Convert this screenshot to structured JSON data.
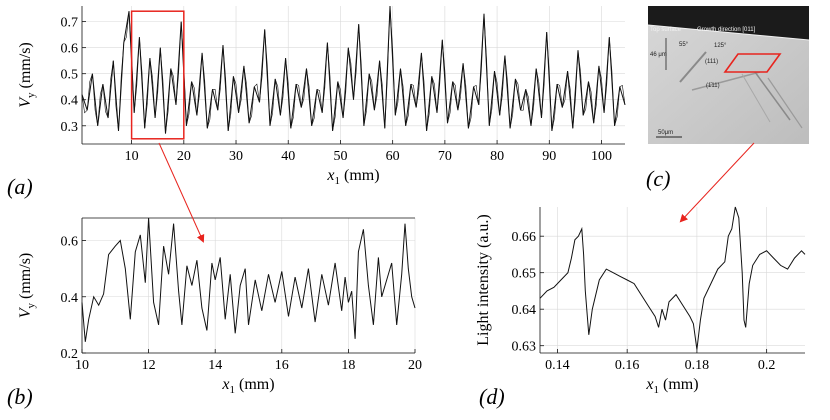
{
  "panels": {
    "a": "(a)",
    "b": "(b)",
    "c": "(c)",
    "d": "(d)"
  },
  "colors": {
    "line": "#111111",
    "highlight": "#e8241e",
    "grid": "#d9d9d9"
  },
  "chart_data": [
    {
      "id": "a",
      "type": "line",
      "xlabel": "x_1 (mm)",
      "ylabel": "V_y (mm/s)",
      "xlim": [
        0.5,
        104.5
      ],
      "ylim": [
        0.23,
        0.76
      ],
      "xticks": [
        10,
        20,
        30,
        40,
        50,
        60,
        70,
        80,
        90,
        100
      ],
      "yticks": [
        0.3,
        0.4,
        0.5,
        0.6,
        0.7
      ],
      "ytick_labels": [
        "0.3",
        "0.4",
        "0.5",
        "0.6",
        "0.7"
      ],
      "grid": true,
      "series": [
        {
          "x": [
            0.5,
            1.5,
            2.5,
            3.5,
            4.5,
            5.5,
            6.5,
            7.5,
            8.5,
            9.5,
            10.5,
            11.5,
            12.5,
            13.5,
            14.5,
            15.5,
            16.5,
            17.5,
            18.5,
            19.5,
            20.5,
            21.5,
            22.5,
            23.5,
            24.5,
            25.5,
            26.5,
            27.5,
            28.5,
            29.5,
            30.5,
            31.5,
            32.5,
            33.5,
            34.5,
            35.5,
            36.5,
            37.5,
            38.5,
            39.5,
            40.5,
            41.5,
            42.5,
            43.5,
            44.5,
            45.5,
            46.5,
            47.5,
            48.5,
            49.5,
            50.5,
            51.5,
            52.5,
            53.5,
            54.5,
            55.5,
            56.5,
            57.5,
            58.5,
            59.5,
            60.5,
            61.5,
            62.5,
            63.5,
            64.5,
            65.5,
            66.5,
            67.5,
            68.5,
            69.5,
            70.5,
            71.5,
            72.5,
            73.5,
            74.5,
            75.5,
            76.5,
            77.5,
            78.5,
            79.5,
            80.5,
            81.5,
            82.5,
            83.5,
            84.5,
            85.5,
            86.5,
            87.5,
            88.5,
            89.5,
            90.5,
            91.5,
            92.5,
            93.5,
            94.5,
            95.5,
            96.5,
            97.5,
            98.5,
            99.5,
            100.5,
            101.5,
            102.5,
            103.5,
            104.5
          ],
          "y": [
            0.42,
            0.36,
            0.5,
            0.3,
            0.46,
            0.33,
            0.55,
            0.28,
            0.62,
            0.74,
            0.35,
            0.64,
            0.29,
            0.56,
            0.33,
            0.6,
            0.27,
            0.52,
            0.38,
            0.7,
            0.3,
            0.47,
            0.34,
            0.58,
            0.29,
            0.44,
            0.36,
            0.61,
            0.28,
            0.49,
            0.35,
            0.53,
            0.31,
            0.45,
            0.39,
            0.67,
            0.3,
            0.48,
            0.34,
            0.56,
            0.29,
            0.46,
            0.37,
            0.52,
            0.3,
            0.44,
            0.35,
            0.62,
            0.28,
            0.47,
            0.33,
            0.6,
            0.4,
            0.69,
            0.3,
            0.5,
            0.36,
            0.55,
            0.29,
            0.76,
            0.34,
            0.52,
            0.3,
            0.46,
            0.37,
            0.58,
            0.28,
            0.49,
            0.35,
            0.63,
            0.31,
            0.47,
            0.36,
            0.54,
            0.29,
            0.45,
            0.38,
            0.73,
            0.3,
            0.51,
            0.34,
            0.57,
            0.29,
            0.48,
            0.36,
            0.44,
            0.3,
            0.52,
            0.33,
            0.66,
            0.28,
            0.46,
            0.37,
            0.51,
            0.29,
            0.59,
            0.34,
            0.47,
            0.31,
            0.53,
            0.35,
            0.64,
            0.3,
            0.45,
            0.38
          ]
        }
      ],
      "highlight_box": {
        "x": [
          10,
          20
        ],
        "y": [
          0.25,
          0.74
        ]
      }
    },
    {
      "id": "b",
      "type": "line",
      "xlabel": "x_1 (mm)",
      "ylabel": "V_y (mm/s)",
      "xlim": [
        10,
        20
      ],
      "ylim": [
        0.2,
        0.68
      ],
      "xticks": [
        10,
        12,
        14,
        16,
        18,
        20
      ],
      "yticks": [
        0.2,
        0.4,
        0.6
      ],
      "ytick_labels": [
        "0.2",
        "0.4",
        "0.6"
      ],
      "grid": true,
      "series": [
        {
          "x": [
            10.0,
            10.1,
            10.2,
            10.35,
            10.5,
            10.65,
            10.8,
            11.0,
            11.15,
            11.3,
            11.45,
            11.6,
            11.75,
            11.9,
            12.0,
            12.15,
            12.3,
            12.45,
            12.6,
            12.75,
            12.9,
            13.0,
            13.15,
            13.3,
            13.45,
            13.6,
            13.75,
            13.9,
            14.0,
            14.15,
            14.3,
            14.45,
            14.6,
            14.75,
            14.9,
            15.0,
            15.2,
            15.4,
            15.6,
            15.8,
            16.0,
            16.2,
            16.4,
            16.6,
            16.8,
            17.0,
            17.2,
            17.4,
            17.6,
            17.8,
            17.9,
            18.0,
            18.1,
            18.2,
            18.3,
            18.45,
            18.6,
            18.75,
            18.9,
            19.0,
            19.15,
            19.3,
            19.45,
            19.6,
            19.7,
            19.8,
            19.9,
            20.0
          ],
          "y": [
            0.38,
            0.24,
            0.32,
            0.4,
            0.37,
            0.41,
            0.55,
            0.58,
            0.6,
            0.5,
            0.32,
            0.56,
            0.62,
            0.45,
            0.68,
            0.38,
            0.3,
            0.58,
            0.48,
            0.66,
            0.42,
            0.3,
            0.51,
            0.44,
            0.53,
            0.36,
            0.28,
            0.52,
            0.46,
            0.54,
            0.32,
            0.48,
            0.27,
            0.44,
            0.5,
            0.3,
            0.46,
            0.35,
            0.48,
            0.38,
            0.49,
            0.33,
            0.47,
            0.36,
            0.5,
            0.31,
            0.48,
            0.37,
            0.52,
            0.35,
            0.47,
            0.38,
            0.42,
            0.25,
            0.56,
            0.64,
            0.44,
            0.3,
            0.54,
            0.4,
            0.46,
            0.52,
            0.3,
            0.48,
            0.66,
            0.5,
            0.4,
            0.36
          ]
        }
      ]
    },
    {
      "id": "d",
      "type": "line",
      "xlabel": "x_1 (mm)",
      "ylabel": "Light intensity (a.u.)",
      "xlim": [
        0.135,
        0.211
      ],
      "ylim": [
        0.628,
        0.668
      ],
      "xticks": [
        0.14,
        0.16,
        0.18,
        0.2
      ],
      "xtick_labels": [
        "0.14",
        "0.16",
        "0.18",
        "0.2"
      ],
      "yticks": [
        0.63,
        0.64,
        0.65,
        0.66
      ],
      "ytick_labels": [
        "0.63",
        "0.64",
        "0.65",
        "0.66"
      ],
      "grid": true,
      "series": [
        {
          "x": [
            0.135,
            0.137,
            0.139,
            0.141,
            0.143,
            0.144,
            0.145,
            0.146,
            0.147,
            0.1475,
            0.148,
            0.149,
            0.15,
            0.152,
            0.154,
            0.156,
            0.158,
            0.16,
            0.162,
            0.164,
            0.166,
            0.168,
            0.169,
            0.17,
            0.171,
            0.172,
            0.174,
            0.176,
            0.178,
            0.179,
            0.18,
            0.181,
            0.182,
            0.184,
            0.186,
            0.188,
            0.189,
            0.19,
            0.191,
            0.192,
            0.193,
            0.1935,
            0.194,
            0.195,
            0.196,
            0.198,
            0.2,
            0.202,
            0.204,
            0.206,
            0.208,
            0.21,
            0.211
          ],
          "y": [
            0.643,
            0.645,
            0.646,
            0.648,
            0.65,
            0.654,
            0.659,
            0.66,
            0.662,
            0.655,
            0.645,
            0.633,
            0.64,
            0.648,
            0.651,
            0.65,
            0.649,
            0.648,
            0.647,
            0.644,
            0.641,
            0.638,
            0.635,
            0.64,
            0.637,
            0.642,
            0.644,
            0.641,
            0.638,
            0.636,
            0.629,
            0.637,
            0.643,
            0.647,
            0.651,
            0.653,
            0.66,
            0.662,
            0.668,
            0.665,
            0.65,
            0.637,
            0.635,
            0.647,
            0.652,
            0.655,
            0.656,
            0.654,
            0.652,
            0.651,
            0.654,
            0.656,
            0.655
          ]
        }
      ]
    }
  ],
  "micrograph": {
    "labels": {
      "top_surface": "Top surface",
      "growth": "Growth direction [011]",
      "angle55": "55°",
      "angle125": "125°",
      "depth": "46 μm",
      "plane1": "(111)",
      "plane2": "(1̄11)",
      "scalebar": "50μm"
    }
  }
}
